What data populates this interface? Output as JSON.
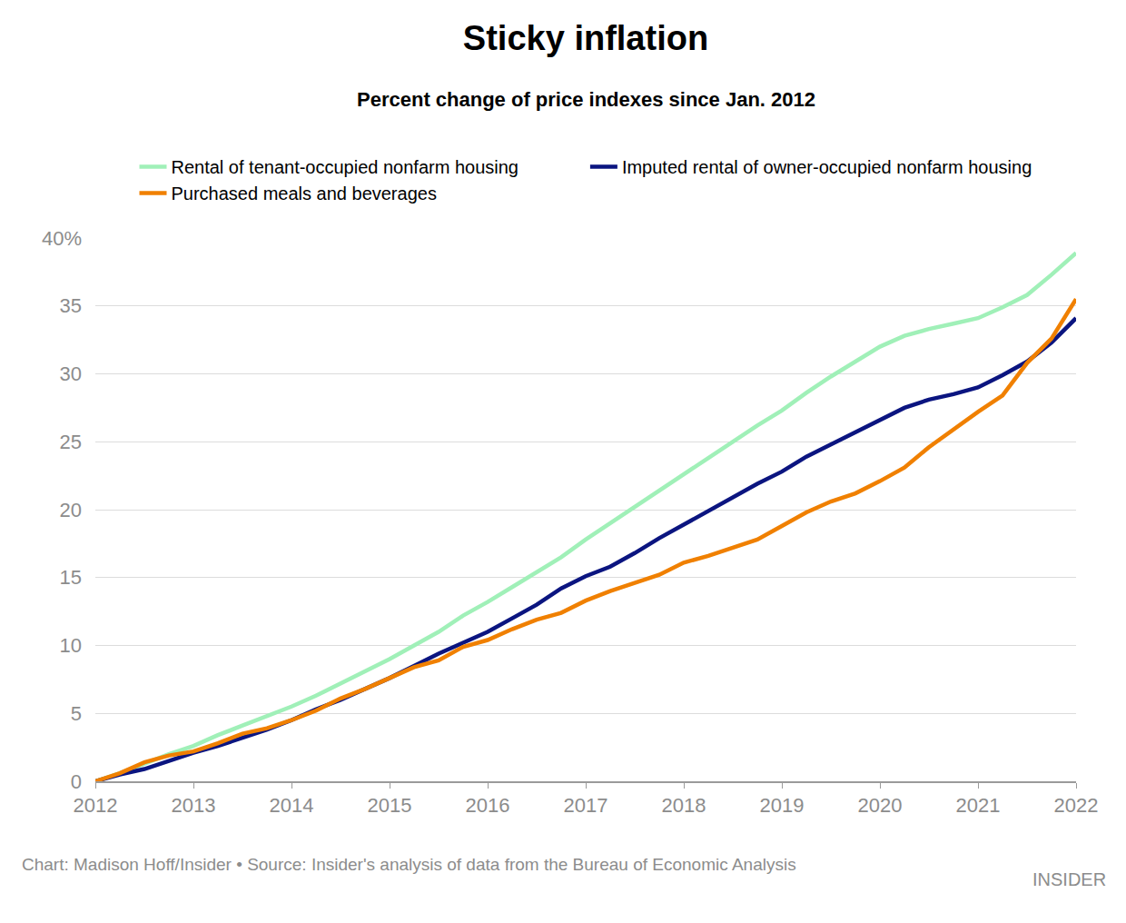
{
  "chart_data": {
    "type": "line",
    "title": "Sticky inflation",
    "subtitle": "Percent change of price indexes since Jan. 2012",
    "annotations": [
      "Chart: Madison Hoff/Insider • Source: Insider's analysis of data from the Bureau of Economic Analysis",
      "INSIDER"
    ],
    "categories": [
      "2012",
      null,
      null,
      null,
      "2013",
      null,
      null,
      null,
      "2014",
      null,
      null,
      null,
      "2015",
      null,
      null,
      null,
      "2016",
      null,
      null,
      null,
      "2017",
      null,
      null,
      null,
      "2018",
      null,
      null,
      null,
      "2019",
      null,
      null,
      null,
      "2020",
      null,
      null,
      null,
      "2021",
      null,
      null,
      null,
      "2022"
    ],
    "series": [
      {
        "name": "Rental of tenant-occupied nonfarm housing",
        "color": "#a0f0b8",
        "values": [
          0,
          0.6,
          1.3,
          2.0,
          2.6,
          3.4,
          4.1,
          4.8,
          5.5,
          6.3,
          7.2,
          8.1,
          9.0,
          10.0,
          11.0,
          12.2,
          13.2,
          14.3,
          15.4,
          16.5,
          17.8,
          19.0,
          20.2,
          21.4,
          22.6,
          23.8,
          25.0,
          26.2,
          27.3,
          28.6,
          29.8,
          30.9,
          32.0,
          32.8,
          33.3,
          33.7,
          34.1,
          34.9,
          35.8,
          37.3,
          38.9
        ]
      },
      {
        "name": "Imputed rental of owner-occupied nonfarm housing",
        "color": "#0b1580",
        "values": [
          0,
          0.5,
          0.9,
          1.5,
          2.1,
          2.6,
          3.2,
          3.8,
          4.5,
          5.3,
          6.0,
          6.8,
          7.6,
          8.5,
          9.4,
          10.2,
          11.0,
          12.0,
          13.0,
          14.2,
          15.1,
          15.8,
          16.8,
          17.9,
          18.9,
          19.9,
          20.9,
          21.9,
          22.8,
          23.9,
          24.8,
          25.7,
          26.6,
          27.5,
          28.1,
          28.5,
          29.0,
          29.9,
          30.9,
          32.3,
          34.1
        ]
      },
      {
        "name": "Purchased meals and beverages",
        "color": "#f08000",
        "values": [
          0,
          0.6,
          1.4,
          1.9,
          2.2,
          2.8,
          3.5,
          3.9,
          4.5,
          5.2,
          6.1,
          6.8,
          7.6,
          8.4,
          8.9,
          9.9,
          10.4,
          11.2,
          11.9,
          12.4,
          13.3,
          14.0,
          14.6,
          15.2,
          16.1,
          16.6,
          17.2,
          17.8,
          18.8,
          19.8,
          20.6,
          21.2,
          22.1,
          23.1,
          24.6,
          25.9,
          27.2,
          28.4,
          30.8,
          32.6,
          35.5
        ]
      }
    ],
    "ylim": [
      0,
      40
    ],
    "yticks": [
      0,
      5,
      10,
      15,
      20,
      25,
      30,
      35,
      {
        "value": 40,
        "label": "40%"
      }
    ],
    "grid": true,
    "legend": "top"
  }
}
